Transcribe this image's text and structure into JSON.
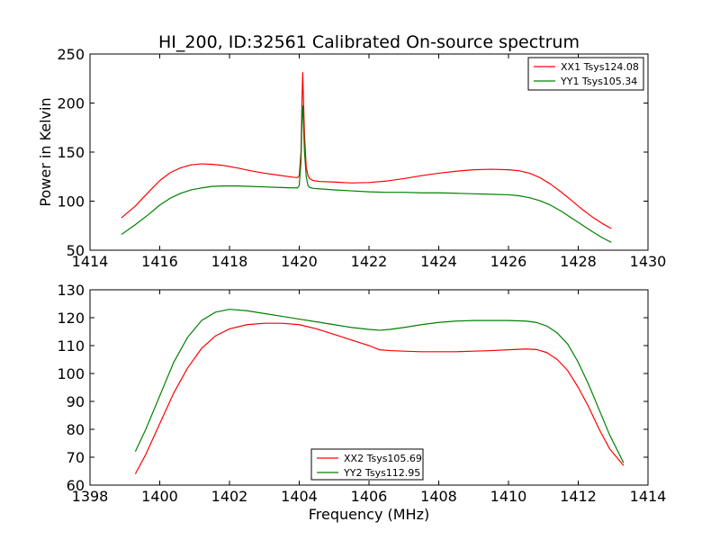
{
  "figure": {
    "title": "HI_200, ID:32561 Calibrated On-source spectrum"
  },
  "chart_data": [
    {
      "type": "line",
      "title": "HI_200, ID:32561 Calibrated On-source spectrum",
      "xlabel": "",
      "ylabel": "Power in Kelvin",
      "xlim": [
        1414,
        1430
      ],
      "ylim": [
        50,
        250
      ],
      "xticks": [
        1414,
        1416,
        1418,
        1420,
        1422,
        1424,
        1426,
        1428,
        1430
      ],
      "yticks": [
        50,
        100,
        150,
        200,
        250
      ],
      "legend_position": "top-right",
      "grid": false,
      "series": [
        {
          "name": "XX1 Tsys124.08",
          "color": "#ff0000",
          "x": [
            1414.9,
            1415.3,
            1415.7,
            1416.0,
            1416.3,
            1416.6,
            1416.9,
            1417.2,
            1417.5,
            1417.8,
            1418.2,
            1418.6,
            1419.0,
            1419.4,
            1419.8,
            1419.95,
            1420.0,
            1420.05,
            1420.08,
            1420.1,
            1420.12,
            1420.15,
            1420.2,
            1420.25,
            1420.3,
            1420.4,
            1420.6,
            1421.0,
            1421.5,
            1422.0,
            1422.5,
            1423.0,
            1423.5,
            1424.0,
            1424.5,
            1425.0,
            1425.5,
            1426.0,
            1426.3,
            1426.6,
            1426.9,
            1427.2,
            1427.5,
            1427.8,
            1428.1,
            1428.4,
            1428.7,
            1428.95
          ],
          "y": [
            83,
            95,
            110,
            121,
            129,
            134,
            137,
            138,
            137.5,
            136.5,
            134,
            131,
            128.5,
            126.5,
            124.5,
            124,
            126,
            150,
            205,
            231,
            205,
            168,
            135,
            126,
            123,
            121,
            120,
            119.5,
            118.5,
            119,
            120.5,
            123,
            126,
            128.5,
            130.5,
            132,
            132.5,
            132,
            131,
            128.5,
            124,
            117.5,
            109.5,
            101,
            92,
            84,
            77,
            72
          ]
        },
        {
          "name": "YY1 Tsys105.34",
          "color": "#008000",
          "x": [
            1414.9,
            1415.3,
            1415.7,
            1416.0,
            1416.3,
            1416.6,
            1416.9,
            1417.2,
            1417.5,
            1417.8,
            1418.2,
            1418.6,
            1419.0,
            1419.4,
            1419.8,
            1419.95,
            1420.0,
            1420.05,
            1420.08,
            1420.1,
            1420.12,
            1420.15,
            1420.2,
            1420.25,
            1420.3,
            1420.4,
            1420.6,
            1421.0,
            1421.5,
            1422.0,
            1422.5,
            1423.0,
            1423.5,
            1424.0,
            1424.5,
            1425.0,
            1425.5,
            1426.0,
            1426.3,
            1426.6,
            1426.9,
            1427.2,
            1427.5,
            1427.8,
            1428.1,
            1428.4,
            1428.7,
            1428.95
          ],
          "y": [
            66,
            76,
            87,
            96,
            103,
            108,
            111.5,
            113.5,
            115,
            115.5,
            115.5,
            115,
            114.5,
            114,
            113.5,
            113.5,
            116,
            140,
            185,
            197,
            180,
            150,
            125,
            116,
            114,
            113,
            112.5,
            111.5,
            110.5,
            109.5,
            109,
            109,
            108.5,
            108.5,
            108,
            107.5,
            107,
            106.5,
            105.5,
            103.5,
            100.5,
            96,
            90,
            83,
            76,
            69,
            62.5,
            58
          ]
        }
      ]
    },
    {
      "type": "line",
      "title": "",
      "xlabel": "Frequency (MHz)",
      "ylabel": "",
      "xlim": [
        1398,
        1414
      ],
      "ylim": [
        60,
        130
      ],
      "xticks": [
        1398,
        1400,
        1402,
        1404,
        1406,
        1408,
        1410,
        1412,
        1414
      ],
      "yticks": [
        60,
        70,
        80,
        90,
        100,
        110,
        120,
        130
      ],
      "legend_position": "bottom-center",
      "grid": false,
      "series": [
        {
          "name": "XX2 Tsys105.69",
          "color": "#ff0000",
          "x": [
            1399.3,
            1399.6,
            1400.0,
            1400.4,
            1400.8,
            1401.2,
            1401.6,
            1402.0,
            1402.5,
            1403.0,
            1403.5,
            1404.0,
            1404.5,
            1405.0,
            1405.5,
            1406.0,
            1406.3,
            1406.6,
            1407.0,
            1407.5,
            1408.0,
            1408.5,
            1409.0,
            1409.5,
            1410.0,
            1410.5,
            1410.8,
            1411.1,
            1411.4,
            1411.7,
            1412.0,
            1412.3,
            1412.6,
            1412.9,
            1413.3
          ],
          "y": [
            64,
            71,
            82,
            93,
            102,
            109,
            113.5,
            116,
            117.5,
            118,
            118,
            117.5,
            116,
            114,
            112,
            110,
            108.5,
            108.2,
            108,
            107.8,
            107.8,
            107.8,
            108,
            108.2,
            108.5,
            108.8,
            108.6,
            107.5,
            105,
            101,
            95,
            88,
            80,
            73,
            67
          ]
        },
        {
          "name": "YY2 Tsys112.95",
          "color": "#008000",
          "x": [
            1399.3,
            1399.6,
            1400.0,
            1400.4,
            1400.8,
            1401.2,
            1401.6,
            1402.0,
            1402.5,
            1403.0,
            1403.5,
            1404.0,
            1404.5,
            1405.0,
            1405.5,
            1406.0,
            1406.3,
            1406.6,
            1407.0,
            1407.5,
            1408.0,
            1408.5,
            1409.0,
            1409.5,
            1410.0,
            1410.5,
            1410.8,
            1411.1,
            1411.4,
            1411.7,
            1412.0,
            1412.3,
            1412.6,
            1412.9,
            1413.3
          ],
          "y": [
            72,
            80,
            92,
            104,
            113,
            119,
            122,
            123,
            122.5,
            121.5,
            120.5,
            119.5,
            118.5,
            117.5,
            116.5,
            115.8,
            115.5,
            115.8,
            116.5,
            117.5,
            118.3,
            118.8,
            119,
            119,
            119,
            118.8,
            118.3,
            117,
            114.5,
            110.5,
            104,
            96,
            87,
            78,
            68
          ]
        }
      ]
    }
  ]
}
